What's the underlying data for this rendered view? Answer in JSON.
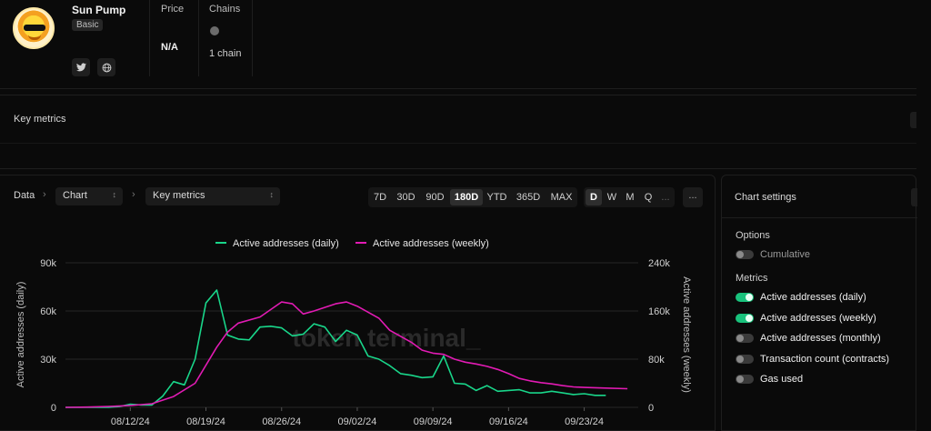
{
  "project": {
    "name": "Sun Pump",
    "tier": "Basic",
    "social": {
      "twitter_icon": "twitter-icon",
      "web_icon": "globe-icon"
    }
  },
  "header": {
    "price_label": "Price",
    "price_value": "N/A",
    "chains_label": "Chains",
    "chains_value": "1 chain"
  },
  "key_metrics": {
    "label": "Key metrics"
  },
  "toolbar": {
    "crumb_root": "Data",
    "view_select": "Chart",
    "metric_select": "Key metrics",
    "ranges": [
      "7D",
      "30D",
      "90D",
      "180D",
      "YTD",
      "365D",
      "MAX"
    ],
    "active_range": "180D",
    "granularity": [
      "D",
      "W",
      "M",
      "Q",
      "..."
    ],
    "active_granularity": "D",
    "more": "..."
  },
  "settings": {
    "title": "Chart settings",
    "options_heading": "Options",
    "options": [
      {
        "label": "Cumulative",
        "on": false
      }
    ],
    "metrics_heading": "Metrics",
    "metrics": [
      {
        "label": "Active addresses (daily)",
        "on": true
      },
      {
        "label": "Active addresses (weekly)",
        "on": true
      },
      {
        "label": "Active addresses (monthly)",
        "on": false
      },
      {
        "label": "Transaction count (contracts)",
        "on": false
      },
      {
        "label": "Gas used",
        "on": false
      }
    ]
  },
  "chart_data": {
    "type": "line",
    "watermark": "token terminal_",
    "legend_position": "top-center",
    "x_ticks": [
      "08/12/24",
      "08/19/24",
      "08/26/24",
      "09/02/24",
      "09/09/24",
      "09/16/24",
      "09/23/24"
    ],
    "x_range": [
      "2024-08-06",
      "2024-09-28"
    ],
    "y_left": {
      "label": "Active addresses (daily)",
      "ticks": [
        "0",
        "30k",
        "60k",
        "90k"
      ],
      "range": [
        0,
        90000
      ]
    },
    "y_right": {
      "label": "Active addresses (weekly)",
      "ticks": [
        "0",
        "80k",
        "160k",
        "240k"
      ],
      "range": [
        0,
        240000
      ]
    },
    "grid": true,
    "series": [
      {
        "name": "Active addresses (daily)",
        "axis": "left",
        "color": "#19d68a",
        "points": [
          [
            "2024-08-06",
            0
          ],
          [
            "2024-08-07",
            0
          ],
          [
            "2024-08-08",
            0
          ],
          [
            "2024-08-09",
            0
          ],
          [
            "2024-08-10",
            0
          ],
          [
            "2024-08-11",
            500
          ],
          [
            "2024-08-12",
            2000
          ],
          [
            "2024-08-13",
            1500
          ],
          [
            "2024-08-14",
            1500
          ],
          [
            "2024-08-15",
            7000
          ],
          [
            "2024-08-16",
            16000
          ],
          [
            "2024-08-17",
            14000
          ],
          [
            "2024-08-18",
            30000
          ],
          [
            "2024-08-19",
            65000
          ],
          [
            "2024-08-20",
            73000
          ],
          [
            "2024-08-21",
            45000
          ],
          [
            "2024-08-22",
            42500
          ],
          [
            "2024-08-23",
            42000
          ],
          [
            "2024-08-24",
            50000
          ],
          [
            "2024-08-25",
            50500
          ],
          [
            "2024-08-26",
            49500
          ],
          [
            "2024-08-27",
            44500
          ],
          [
            "2024-08-28",
            45500
          ],
          [
            "2024-08-29",
            52000
          ],
          [
            "2024-08-30",
            50000
          ],
          [
            "2024-08-31",
            41000
          ],
          [
            "2024-09-01",
            48000
          ],
          [
            "2024-09-02",
            45000
          ],
          [
            "2024-09-03",
            32000
          ],
          [
            "2024-09-04",
            30000
          ],
          [
            "2024-09-05",
            26000
          ],
          [
            "2024-09-06",
            21000
          ],
          [
            "2024-09-07",
            20000
          ],
          [
            "2024-09-08",
            18500
          ],
          [
            "2024-09-09",
            19000
          ],
          [
            "2024-09-10",
            32000
          ],
          [
            "2024-09-11",
            15000
          ],
          [
            "2024-09-12",
            14500
          ],
          [
            "2024-09-13",
            10500
          ],
          [
            "2024-09-14",
            13500
          ],
          [
            "2024-09-15",
            10000
          ],
          [
            "2024-09-16",
            10500
          ],
          [
            "2024-09-17",
            11000
          ],
          [
            "2024-09-18",
            9000
          ],
          [
            "2024-09-19",
            9000
          ],
          [
            "2024-09-20",
            10000
          ],
          [
            "2024-09-21",
            9000
          ],
          [
            "2024-09-22",
            8000
          ],
          [
            "2024-09-23",
            8500
          ],
          [
            "2024-09-24",
            7500
          ],
          [
            "2024-09-25",
            7500
          ]
        ]
      },
      {
        "name": "Active addresses (weekly)",
        "axis": "right",
        "color": "#e21bb4",
        "points": [
          [
            "2024-08-06",
            0
          ],
          [
            "2024-08-08",
            500
          ],
          [
            "2024-08-10",
            1500
          ],
          [
            "2024-08-12",
            3000
          ],
          [
            "2024-08-14",
            6000
          ],
          [
            "2024-08-16",
            18000
          ],
          [
            "2024-08-18",
            40000
          ],
          [
            "2024-08-20",
            100000
          ],
          [
            "2024-08-21",
            125000
          ],
          [
            "2024-08-22",
            140000
          ],
          [
            "2024-08-24",
            150000
          ],
          [
            "2024-08-26",
            175000
          ],
          [
            "2024-08-27",
            172000
          ],
          [
            "2024-08-28",
            155000
          ],
          [
            "2024-08-29",
            160000
          ],
          [
            "2024-08-31",
            172000
          ],
          [
            "2024-09-01",
            175000
          ],
          [
            "2024-09-02",
            168000
          ],
          [
            "2024-09-03",
            158000
          ],
          [
            "2024-09-04",
            148000
          ],
          [
            "2024-09-05",
            128000
          ],
          [
            "2024-09-06",
            118000
          ],
          [
            "2024-09-07",
            108000
          ],
          [
            "2024-09-08",
            95000
          ],
          [
            "2024-09-09",
            90000
          ],
          [
            "2024-09-10",
            88000
          ],
          [
            "2024-09-11",
            80000
          ],
          [
            "2024-09-12",
            75000
          ],
          [
            "2024-09-13",
            72000
          ],
          [
            "2024-09-14",
            68000
          ],
          [
            "2024-09-15",
            63000
          ],
          [
            "2024-09-16",
            56000
          ],
          [
            "2024-09-17",
            48000
          ],
          [
            "2024-09-18",
            44000
          ],
          [
            "2024-09-19",
            41000
          ],
          [
            "2024-09-20",
            39000
          ],
          [
            "2024-09-21",
            36000
          ],
          [
            "2024-09-22",
            34000
          ],
          [
            "2024-09-23",
            33000
          ],
          [
            "2024-09-25",
            32000
          ],
          [
            "2024-09-27",
            31000
          ]
        ]
      }
    ]
  }
}
